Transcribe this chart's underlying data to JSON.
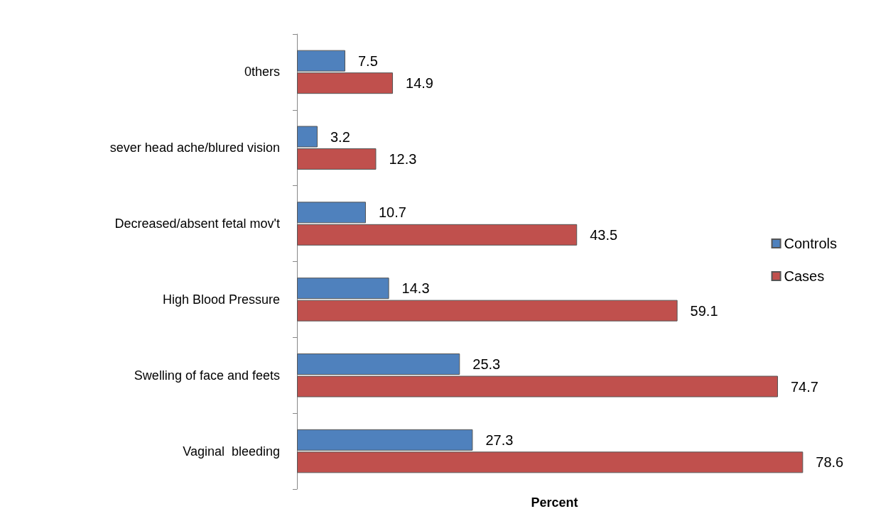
{
  "chart_data": {
    "type": "bar",
    "orientation": "horizontal",
    "xlabel": "Percent",
    "categories": [
      "0thers",
      "sever head ache/blured vision",
      "Decreased/absent fetal mov't",
      "High Blood Pressure",
      "Swelling of face and feets",
      "Vaginal  bleeding"
    ],
    "series": [
      {
        "name": "Controls",
        "color": "#4f81bd",
        "values": [
          7.5,
          3.2,
          10.7,
          14.3,
          25.3,
          27.3
        ]
      },
      {
        "name": "Cases",
        "color": "#c0504d",
        "values": [
          14.9,
          12.3,
          43.5,
          59.1,
          74.7,
          78.6
        ]
      }
    ],
    "data_labels": true,
    "grid": false,
    "legend": "right"
  }
}
